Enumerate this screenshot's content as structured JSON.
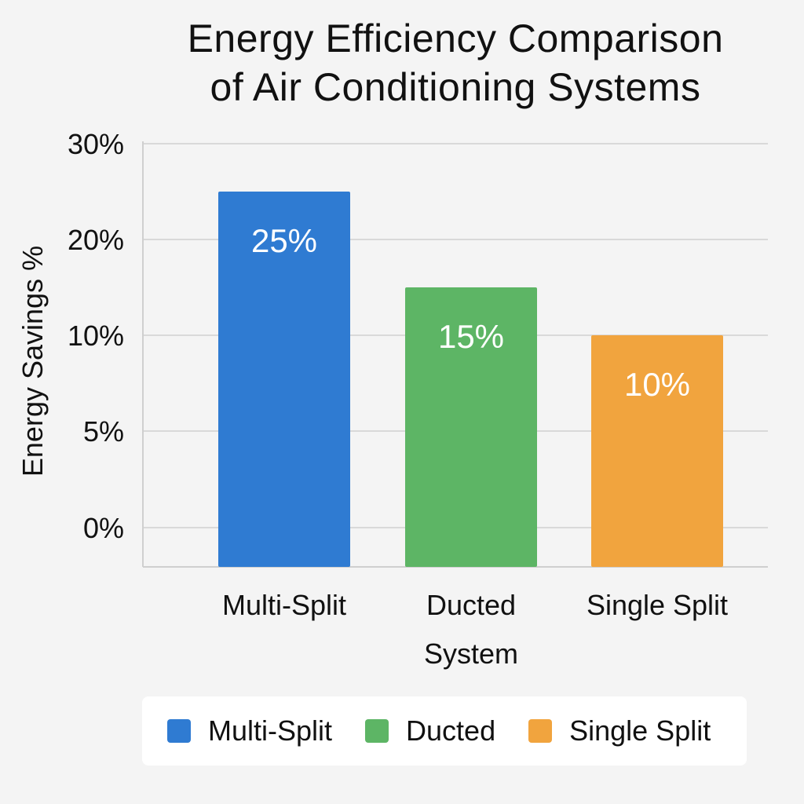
{
  "chart_data": {
    "type": "bar",
    "title": [
      "Energy Efficiency Comparison",
      "of Air Conditioning Systems"
    ],
    "ylabel": "Energy Savings %",
    "xlabel": "",
    "categories": [
      [
        "Multi-Split"
      ],
      [
        "Ducted",
        "System"
      ],
      [
        "Single Split"
      ]
    ],
    "values": [
      25,
      15,
      10
    ],
    "value_labels": [
      "25%",
      "15%",
      "10%"
    ],
    "colors": [
      "#2f7bd2",
      "#5db565",
      "#f1a43e"
    ],
    "y_ticks": [
      {
        "label": "0%",
        "value": 0
      },
      {
        "label": "5%",
        "value": 5
      },
      {
        "label": "10%",
        "value": 10
      },
      {
        "label": "20%",
        "value": 20
      },
      {
        "label": "30%",
        "value": 30
      }
    ],
    "grid": true,
    "legend_position": "bottom",
    "legend": [
      {
        "label": "Multi-Split",
        "color": "#2f7bd2"
      },
      {
        "label": "Ducted",
        "color": "#5db565"
      },
      {
        "label": "Single Split",
        "color": "#f1a43e"
      }
    ]
  }
}
